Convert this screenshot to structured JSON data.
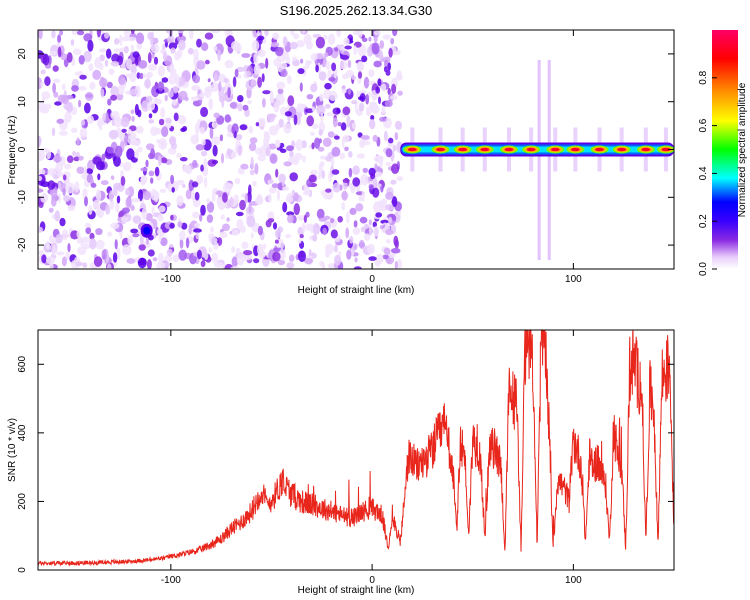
{
  "chart_data": [
    {
      "type": "heatmap",
      "title": "S196.2025.262.13.34.G30",
      "xlabel": "Height of straight line (km)",
      "ylabel": "Frequency (Hz)",
      "xlim": [
        -166,
        150
      ],
      "ylim": [
        -25,
        25
      ],
      "xticks": [
        -100,
        0,
        100
      ],
      "yticks": [
        -20,
        -10,
        0,
        10,
        20
      ],
      "colorbar": {
        "label": "Normalized spectral amplitude",
        "range": [
          0,
          1
        ],
        "ticks": [
          "0.0",
          "0.2",
          "0.4",
          "0.6",
          "0.8"
        ],
        "colors": [
          "#ffffff",
          "#e9ccfb",
          "#8a2be2",
          "#5c00e6",
          "#0000ff",
          "#00ffff",
          "#00ff00",
          "#ffff00",
          "#ff8800",
          "#ff0000",
          "#ff0066"
        ]
      },
      "noise_region": {
        "x_range": [
          -166,
          14
        ],
        "y_range": [
          -25,
          25
        ],
        "amplitude": 0.1
      },
      "carrier_line": {
        "frequency_hz": 0,
        "x_range": [
          14,
          150
        ],
        "peaks_x": [
          20,
          34,
          45,
          56,
          68,
          79,
          91,
          101,
          113,
          124,
          136,
          146
        ],
        "peak_amplitude": 0.93
      },
      "spot": {
        "x": -112,
        "y": -17,
        "amplitude": 0.28
      },
      "spikes_x": [
        83,
        88
      ]
    },
    {
      "type": "line",
      "xlabel": "Height of straight line (km)",
      "ylabel": "SNR (10 * v/v)",
      "xlim": [
        -166,
        150
      ],
      "ylim": [
        0,
        700
      ],
      "xticks": [
        -100,
        0,
        100
      ],
      "yticks": [
        0,
        200,
        400,
        600
      ],
      "series": [
        {
          "name": "SNR",
          "color": "#e8261c",
          "x": [
            -166,
            -150,
            -135,
            -120,
            -110,
            -103,
            -100,
            -95,
            -85,
            -75,
            -70,
            -65,
            -60,
            -55,
            -52,
            -48,
            -45,
            -40,
            -35,
            -30,
            -25,
            -20,
            -15,
            -10,
            -5,
            0,
            5,
            8,
            10,
            14,
            16,
            18,
            20,
            22,
            26,
            30,
            32,
            34,
            36,
            38,
            40,
            42,
            44,
            46,
            48,
            50,
            52,
            54,
            56,
            58,
            60,
            62,
            64,
            66,
            68,
            70,
            72,
            74,
            76,
            78,
            80,
            82,
            84,
            86,
            88,
            90,
            92,
            94,
            96,
            98,
            100,
            102,
            104,
            106,
            108,
            110,
            112,
            114,
            116,
            118,
            120,
            122,
            124,
            126,
            128,
            130,
            132,
            134,
            136,
            138,
            140,
            142,
            144,
            146,
            148,
            150
          ],
          "values": [
            20,
            20,
            22,
            25,
            30,
            35,
            40,
            45,
            60,
            90,
            120,
            140,
            170,
            230,
            190,
            220,
            260,
            220,
            200,
            190,
            180,
            170,
            160,
            150,
            170,
            180,
            160,
            60,
            160,
            80,
            200,
            330,
            320,
            300,
            320,
            350,
            380,
            400,
            420,
            360,
            300,
            110,
            370,
            340,
            100,
            380,
            360,
            330,
            80,
            330,
            360,
            340,
            310,
            50,
            520,
            500,
            480,
            60,
            650,
            680,
            600,
            60,
            690,
            680,
            400,
            60,
            260,
            250,
            230,
            200,
            380,
            350,
            300,
            80,
            330,
            300,
            320,
            280,
            250,
            80,
            420,
            330,
            300,
            60,
            590,
            610,
            560,
            540,
            80,
            520,
            480,
            70,
            560,
            580,
            600,
            90
          ]
        }
      ]
    }
  ]
}
